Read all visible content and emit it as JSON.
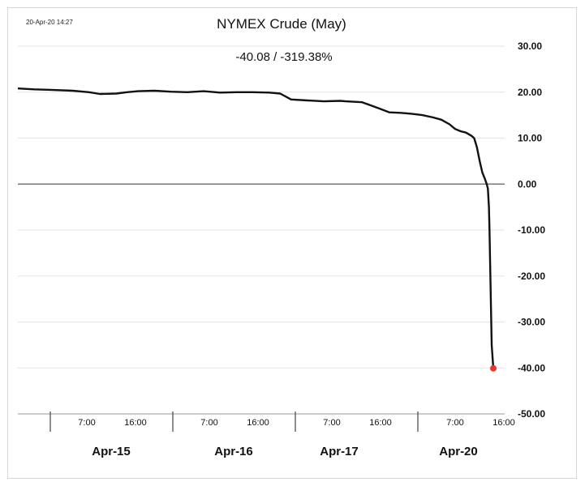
{
  "timestamp": "20-Apr-20 14:27",
  "chart_data": {
    "type": "line",
    "title": "NYMEX Crude (May)",
    "subtitle": "-40.08  /  -319.38%",
    "xlabel": "",
    "ylabel": "",
    "ylim": [
      -50,
      30
    ],
    "yticks": [
      "30.00",
      "20.00",
      "10.00",
      "0.00",
      "-10.00",
      "-20.00",
      "-30.00",
      "-40.00",
      "-50.00"
    ],
    "y_axis_side": "right",
    "grid": true,
    "x_time_labels": [
      "7:00",
      "16:00",
      "7:00",
      "16:00",
      "7:00",
      "16:00",
      "7:00",
      "16:00"
    ],
    "x_day_labels": [
      "Apr-15",
      "Apr-16",
      "Apr-17",
      "Apr-20"
    ],
    "series": [
      {
        "color": "#111111",
        "x": [
          0,
          0.3,
          0.6,
          1.0,
          1.3,
          1.5,
          1.8,
          2.0,
          2.2,
          2.5,
          2.8,
          3.1,
          3.4,
          3.7,
          4.0,
          4.3,
          4.6,
          4.8,
          5.0,
          5.3,
          5.6,
          5.9,
          6.0,
          6.3,
          6.6,
          6.8,
          7.0,
          7.2,
          7.4,
          7.6,
          7.75,
          7.9,
          8.0,
          8.1,
          8.2,
          8.3,
          8.35,
          8.4,
          8.45,
          8.5,
          8.55,
          8.58,
          8.6,
          8.62,
          8.63,
          8.65,
          8.67,
          8.7
        ],
        "values": [
          20.8,
          20.6,
          20.5,
          20.3,
          20.0,
          19.6,
          19.7,
          20.0,
          20.2,
          20.3,
          20.1,
          20.0,
          20.2,
          19.9,
          20.0,
          20.0,
          19.9,
          19.7,
          18.4,
          18.2,
          18.0,
          18.1,
          18.0,
          17.8,
          16.5,
          15.6,
          15.5,
          15.3,
          15.0,
          14.5,
          14.0,
          13.0,
          12.0,
          11.5,
          11.2,
          10.5,
          10.0,
          8.0,
          5.0,
          2.5,
          1.0,
          0.0,
          -1.0,
          -5.0,
          -10.0,
          -22.0,
          -35.0,
          -40.08
        ]
      }
    ],
    "last_point": {
      "value": -40.08,
      "color": "#e8342a"
    }
  }
}
